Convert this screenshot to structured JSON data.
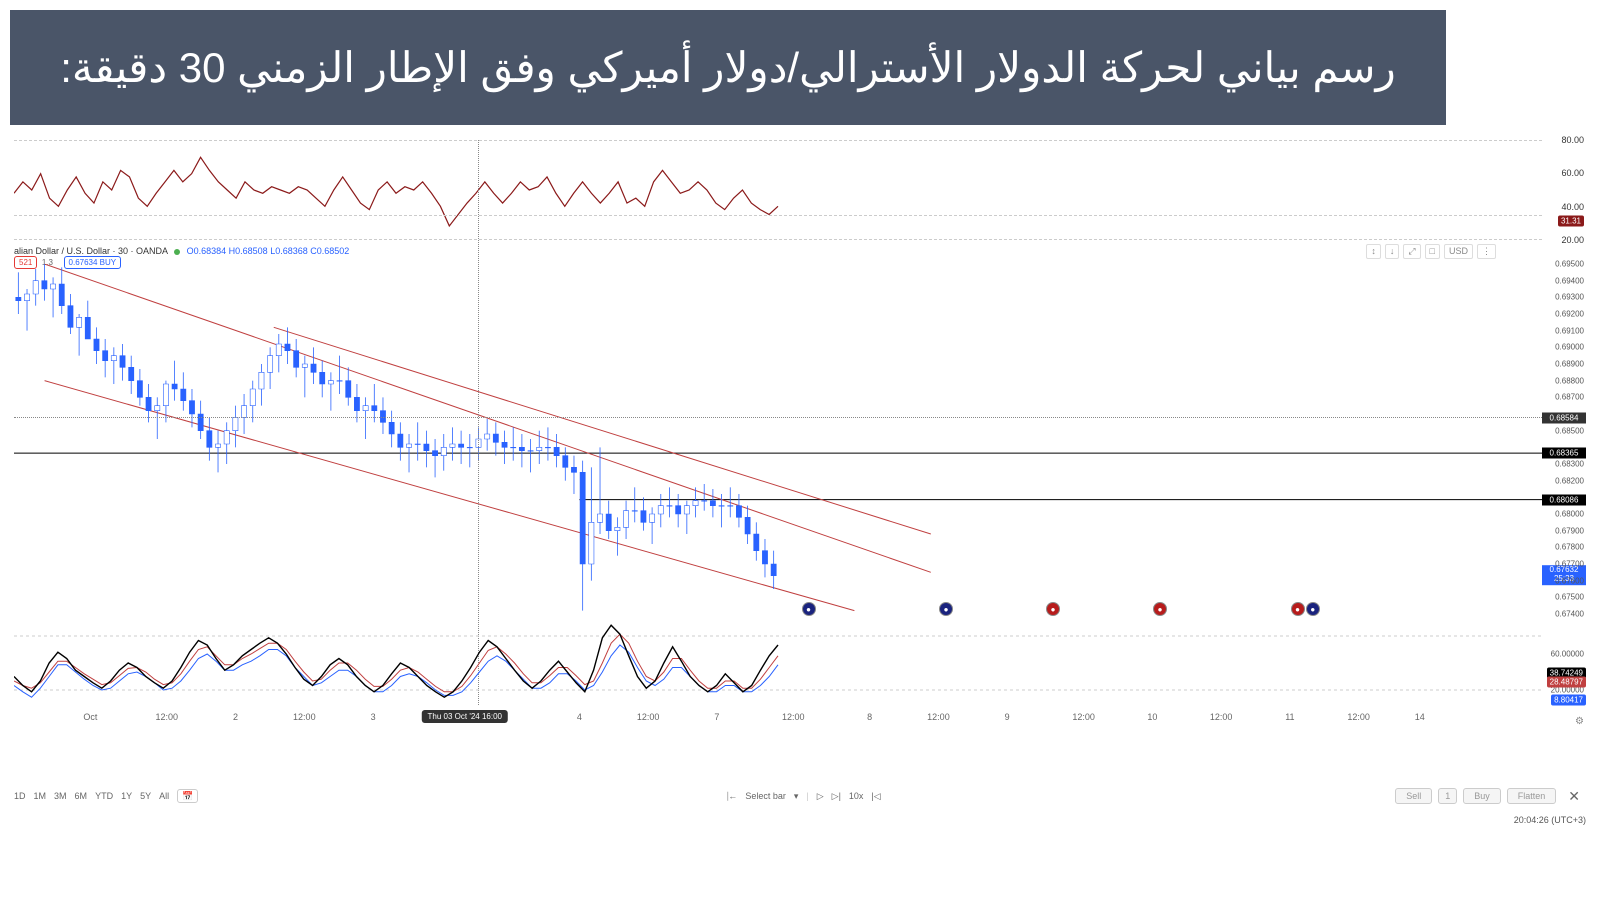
{
  "title": "رسم بياني لحركة الدولار الأسترالي/دولار أميركي وفق الإطار الزمني 30 دقيقة:",
  "title_bg": "#4a5568",
  "symbol_line": {
    "text": "alian Dollar / U.S. Dollar · 30 · OANDA",
    "O": "O0.68384",
    "H": "H0.68508",
    "L": "L0.68368",
    "C": "C0.68502"
  },
  "sell_badge": "521",
  "buy_badge": "0.67634 BUY",
  "rsi": {
    "ylim": [
      20,
      80
    ],
    "ticks": [
      20,
      40,
      60,
      80
    ],
    "current": 31.31,
    "color": "#8b1a1a",
    "data": [
      48,
      55,
      50,
      60,
      45,
      40,
      50,
      58,
      48,
      42,
      55,
      50,
      62,
      58,
      45,
      40,
      48,
      55,
      62,
      55,
      60,
      70,
      62,
      55,
      50,
      45,
      55,
      50,
      48,
      52,
      50,
      48,
      52,
      50,
      45,
      40,
      50,
      58,
      50,
      42,
      38,
      50,
      55,
      48,
      52,
      50,
      55,
      48,
      40,
      28,
      35,
      42,
      48,
      55,
      48,
      42,
      48,
      55,
      50,
      52,
      58,
      48,
      40,
      48,
      55,
      48,
      42,
      48,
      55,
      42,
      45,
      40,
      55,
      62,
      55,
      48,
      50,
      55,
      50,
      42,
      38,
      45,
      50,
      42,
      38,
      35,
      40
    ]
  },
  "price": {
    "ylim": [
      0.674,
      0.695
    ],
    "ticks": [
      0.674,
      0.675,
      0.676,
      0.677,
      0.678,
      0.679,
      0.68,
      0.68086,
      0.682,
      0.683,
      0.68365,
      0.685,
      0.68584,
      0.687,
      0.688,
      0.689,
      0.69,
      0.691,
      0.692,
      0.693,
      0.694,
      0.695
    ],
    "tick_labels": [
      "0.67400",
      "0.67500",
      "0.67600",
      "0.67700",
      "0.67800",
      "0.67900",
      "0.68000",
      "",
      "0.68200",
      "0.68300",
      "",
      "0.68500",
      "",
      "0.68700",
      "0.68800",
      "0.68900",
      "0.69000",
      "0.69100",
      "0.69200",
      "0.69300",
      "0.69400",
      "0.69500"
    ],
    "crosshair_price": 0.68584,
    "hline1": 0.68365,
    "hline2": 0.68086,
    "last_price": 0.67632,
    "last_countdown": "25:33",
    "channel_color": "#c04040",
    "candle_up_color": "#2962ff",
    "candle_down_color": "#2962ff",
    "candles_n": 88,
    "highs": [
      0.6945,
      0.6935,
      0.6947,
      0.695,
      0.6942,
      0.6948,
      0.6932,
      0.692,
      0.6928,
      0.6912,
      0.6905,
      0.69,
      0.6902,
      0.6895,
      0.6887,
      0.6878,
      0.687,
      0.688,
      0.6892,
      0.6885,
      0.6875,
      0.6868,
      0.6858,
      0.685,
      0.6855,
      0.6865,
      0.6872,
      0.688,
      0.689,
      0.69,
      0.6908,
      0.6912,
      0.6905,
      0.6895,
      0.69,
      0.6892,
      0.6885,
      0.6895,
      0.6888,
      0.6878,
      0.687,
      0.6878,
      0.687,
      0.6862,
      0.6855,
      0.6848,
      0.6855,
      0.685,
      0.6845,
      0.6848,
      0.6852,
      0.685,
      0.6848,
      0.6852,
      0.6857,
      0.6855,
      0.685,
      0.6852,
      0.6848,
      0.6845,
      0.685,
      0.6852,
      0.6848,
      0.684,
      0.6835,
      0.6832,
      0.6828,
      0.684,
      0.6808,
      0.6798,
      0.6808,
      0.6816,
      0.681,
      0.6804,
      0.6812,
      0.6816,
      0.6812,
      0.6808,
      0.6816,
      0.6818,
      0.6815,
      0.6812,
      0.6816,
      0.6812,
      0.6805,
      0.6795,
      0.6785,
      0.6778
    ],
    "lows": [
      0.692,
      0.691,
      0.6925,
      0.6928,
      0.6918,
      0.692,
      0.6908,
      0.6895,
      0.6905,
      0.689,
      0.6882,
      0.6878,
      0.688,
      0.6872,
      0.6865,
      0.6855,
      0.6845,
      0.6855,
      0.6868,
      0.6862,
      0.6852,
      0.6845,
      0.6832,
      0.6825,
      0.683,
      0.684,
      0.6848,
      0.6855,
      0.6865,
      0.6875,
      0.6885,
      0.689,
      0.6882,
      0.687,
      0.6878,
      0.687,
      0.6862,
      0.6872,
      0.6865,
      0.6855,
      0.6845,
      0.6855,
      0.6848,
      0.684,
      0.6832,
      0.6825,
      0.6832,
      0.6828,
      0.6822,
      0.6826,
      0.6832,
      0.683,
      0.6828,
      0.6832,
      0.6838,
      0.6835,
      0.683,
      0.6832,
      0.6828,
      0.6825,
      0.683,
      0.6832,
      0.6828,
      0.682,
      0.6812,
      0.6742,
      0.676,
      0.6788,
      0.6785,
      0.6775,
      0.6785,
      0.6795,
      0.679,
      0.6782,
      0.6792,
      0.6798,
      0.6792,
      0.6788,
      0.6798,
      0.6802,
      0.6798,
      0.6792,
      0.6798,
      0.6792,
      0.6782,
      0.6772,
      0.6762,
      0.6755
    ],
    "opens": [
      0.693,
      0.6928,
      0.6932,
      0.694,
      0.6935,
      0.6938,
      0.6925,
      0.6912,
      0.6918,
      0.6905,
      0.6898,
      0.6892,
      0.6895,
      0.6888,
      0.688,
      0.687,
      0.6862,
      0.6865,
      0.6878,
      0.6875,
      0.6868,
      0.686,
      0.685,
      0.684,
      0.6842,
      0.685,
      0.6858,
      0.6865,
      0.6875,
      0.6885,
      0.6895,
      0.6902,
      0.6898,
      0.6888,
      0.689,
      0.6885,
      0.6878,
      0.688,
      0.688,
      0.687,
      0.6862,
      0.6865,
      0.6862,
      0.6855,
      0.6848,
      0.684,
      0.6842,
      0.6842,
      0.6838,
      0.6835,
      0.684,
      0.6842,
      0.684,
      0.684,
      0.6845,
      0.6848,
      0.6843,
      0.684,
      0.684,
      0.6838,
      0.6838,
      0.684,
      0.684,
      0.6835,
      0.6828,
      0.6825,
      0.677,
      0.6795,
      0.68,
      0.679,
      0.6792,
      0.6802,
      0.6802,
      0.6795,
      0.68,
      0.6805,
      0.6805,
      0.68,
      0.6805,
      0.6808,
      0.6808,
      0.6805,
      0.6805,
      0.6805,
      0.6798,
      0.6788,
      0.6778,
      0.677
    ],
    "closes": [
      0.6928,
      0.6932,
      0.694,
      0.6935,
      0.6938,
      0.6925,
      0.6912,
      0.6918,
      0.6905,
      0.6898,
      0.6892,
      0.6895,
      0.6888,
      0.688,
      0.687,
      0.6862,
      0.6865,
      0.6878,
      0.6875,
      0.6868,
      0.686,
      0.685,
      0.684,
      0.6842,
      0.685,
      0.6858,
      0.6865,
      0.6875,
      0.6885,
      0.6895,
      0.6902,
      0.6898,
      0.6888,
      0.689,
      0.6885,
      0.6878,
      0.688,
      0.688,
      0.687,
      0.6862,
      0.6865,
      0.6862,
      0.6855,
      0.6848,
      0.684,
      0.6842,
      0.6842,
      0.6838,
      0.6835,
      0.684,
      0.6842,
      0.684,
      0.684,
      0.6845,
      0.6848,
      0.6843,
      0.684,
      0.684,
      0.6838,
      0.6838,
      0.684,
      0.684,
      0.6835,
      0.6828,
      0.6825,
      0.677,
      0.6795,
      0.68,
      0.679,
      0.6792,
      0.6802,
      0.6802,
      0.6795,
      0.68,
      0.6805,
      0.6805,
      0.68,
      0.6805,
      0.6808,
      0.6808,
      0.6805,
      0.6805,
      0.6805,
      0.6798,
      0.6788,
      0.6778,
      0.677,
      0.6763
    ],
    "channel": {
      "upper_x1_pct": 2,
      "upper_y1": 0.695,
      "upper_x2_pct": 60,
      "upper_y2": 0.6765,
      "mid_x1_pct": 17,
      "mid_y1": 0.6912,
      "mid_x2_pct": 60,
      "mid_y2": 0.6788,
      "lower_x1_pct": 2,
      "lower_y1": 0.688,
      "lower_x2_pct": 55,
      "lower_y2": 0.6742
    },
    "events_x_pct": [
      52,
      61,
      68,
      75,
      84,
      85
    ],
    "events_y": 0.6743
  },
  "stoch": {
    "ylim": [
      0,
      100
    ],
    "gridlines": [
      20,
      80
    ],
    "k_color": "#000000",
    "d_color": "#c04040",
    "j_color": "#2962ff",
    "badges": [
      {
        "label": "38.74249",
        "color": "#000000",
        "y": 38.7
      },
      {
        "label": "28.48797",
        "color": "#c04040",
        "y": 28.5
      },
      {
        "label": "8.80417",
        "color": "#2962ff",
        "y": 8.8
      }
    ],
    "label_60": "60.00000",
    "label_20": "20.00000",
    "k": [
      35,
      25,
      18,
      30,
      50,
      62,
      55,
      42,
      35,
      28,
      22,
      30,
      42,
      50,
      45,
      35,
      28,
      22,
      30,
      45,
      62,
      75,
      70,
      55,
      42,
      48,
      58,
      65,
      72,
      78,
      72,
      60,
      45,
      32,
      25,
      35,
      48,
      55,
      48,
      35,
      25,
      18,
      25,
      38,
      50,
      45,
      35,
      25,
      18,
      12,
      18,
      30,
      45,
      62,
      75,
      68,
      55,
      42,
      30,
      22,
      30,
      42,
      52,
      40,
      28,
      18,
      42,
      78,
      92,
      82,
      58,
      35,
      22,
      30,
      50,
      68,
      52,
      35,
      25,
      18,
      25,
      38,
      28,
      18,
      25,
      42,
      58,
      70
    ],
    "d": [
      30,
      25,
      22,
      28,
      40,
      52,
      52,
      45,
      38,
      32,
      26,
      28,
      36,
      44,
      45,
      40,
      32,
      26,
      28,
      38,
      52,
      65,
      68,
      58,
      48,
      48,
      55,
      60,
      66,
      72,
      72,
      65,
      52,
      40,
      30,
      32,
      42,
      50,
      50,
      42,
      32,
      24,
      24,
      32,
      42,
      45,
      40,
      32,
      24,
      18,
      18,
      24,
      36,
      50,
      64,
      68,
      60,
      50,
      38,
      28,
      28,
      36,
      45,
      45,
      36,
      26,
      30,
      50,
      72,
      82,
      72,
      52,
      35,
      30,
      40,
      55,
      55,
      42,
      30,
      22,
      22,
      30,
      30,
      22,
      22,
      32,
      45,
      58
    ],
    "j": [
      25,
      18,
      12,
      22,
      35,
      48,
      48,
      40,
      32,
      25,
      20,
      22,
      30,
      38,
      40,
      35,
      28,
      20,
      22,
      30,
      42,
      55,
      60,
      52,
      42,
      42,
      48,
      52,
      58,
      65,
      65,
      58,
      45,
      35,
      25,
      28,
      35,
      42,
      42,
      35,
      25,
      18,
      18,
      25,
      35,
      38,
      35,
      28,
      20,
      14,
      14,
      18,
      28,
      40,
      52,
      58,
      52,
      42,
      32,
      22,
      22,
      28,
      38,
      38,
      30,
      20,
      25,
      40,
      58,
      70,
      62,
      45,
      30,
      25,
      32,
      45,
      45,
      35,
      25,
      18,
      18,
      25,
      25,
      18,
      18,
      25,
      35,
      48
    ]
  },
  "time_axis": {
    "ticks_pct": [
      5,
      10,
      14.5,
      19,
      23.5,
      28,
      32,
      37,
      41.5,
      46,
      51,
      56,
      60.5,
      65,
      70,
      74.5,
      79,
      83.5,
      88
    ],
    "labels": [
      "Oct",
      "12:00",
      "2",
      "12:00",
      "3",
      "12:00",
      "",
      "4",
      "12:00",
      "7",
      "12:00",
      "8",
      "12:00",
      "9",
      "12:00",
      "10",
      "12:00",
      "11",
      "12:00"
    ],
    "extra_tick_pct": 92,
    "extra_label": "14",
    "crosshair_x_pct": 29.5,
    "crosshair_label": "Thu 03 Oct '24  16:00"
  },
  "toolbar": {
    "ranges": [
      "1D",
      "1M",
      "3M",
      "6M",
      "YTD",
      "1Y",
      "5Y",
      "All"
    ],
    "select_bar": "Select bar",
    "speed": "10x",
    "sell": "Sell",
    "qty": "1",
    "buy": "Buy",
    "flatten": "Flatten"
  },
  "top_right": {
    "buttons": [
      "↕",
      "↓",
      "⤢",
      "□"
    ],
    "currency": "USD"
  },
  "footer_time": "20:04:26 (UTC+3)"
}
